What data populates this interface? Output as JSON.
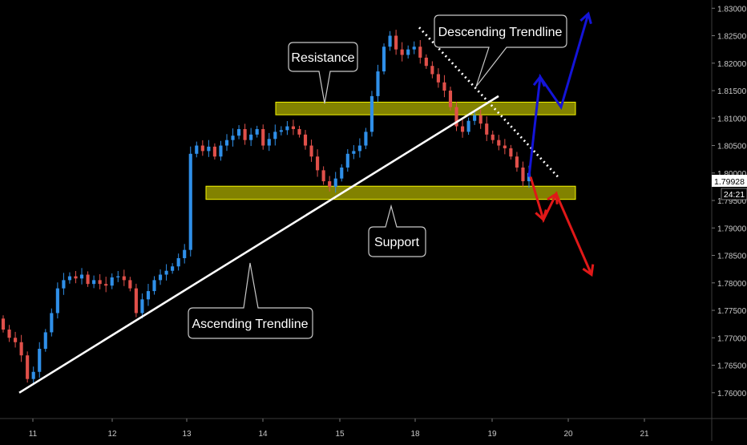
{
  "chart_data": {
    "type": "candlestick",
    "x_ticks": [
      "11",
      "12",
      "13",
      "14",
      "15",
      "18",
      "19",
      "20",
      "21"
    ],
    "y_ticks": [
      "1.83000",
      "1.82500",
      "1.82000",
      "1.81500",
      "1.81000",
      "1.80500",
      "1.80000",
      "1.79500",
      "1.79000",
      "1.78500",
      "1.78000",
      "1.77500",
      "1.77000",
      "1.76500",
      "1.76000"
    ],
    "ylim": [
      1.7553,
      1.8315
    ],
    "current_price": "1.79928",
    "countdown": "24:21",
    "annotations": {
      "resistance": "Resistance",
      "support": "Support",
      "descending": "Descending Trendline",
      "ascending": "Ascending Trendline"
    },
    "zones": {
      "resistance": [
        1.8106,
        1.8129
      ],
      "support": [
        1.7952,
        1.7976
      ]
    },
    "ascending_trendline": {
      "from": [
        "11",
        1.76
      ],
      "to": [
        "19",
        1.814
      ]
    },
    "descending_trendline": {
      "from": [
        "18",
        1.8265
      ],
      "to": [
        "20",
        1.799
      ]
    },
    "scenarios": {
      "bullish": [
        1.7993,
        1.8175,
        1.812,
        1.829
      ],
      "bearish": [
        1.7993,
        1.7915,
        1.7962,
        1.7815
      ]
    },
    "closes": [
      1.7715,
      1.77,
      1.7692,
      1.7668,
      1.7625,
      1.7638,
      1.768,
      1.771,
      1.7745,
      1.779,
      1.7805,
      1.7812,
      1.7808,
      1.7815,
      1.7798,
      1.7805,
      1.7798,
      1.7795,
      1.781,
      1.7812,
      1.7805,
      1.779,
      1.7745,
      1.777,
      1.7785,
      1.7805,
      1.7815,
      1.7822,
      1.783,
      1.7845,
      1.786,
      1.8035,
      1.805,
      1.804,
      1.8048,
      1.803,
      1.805,
      1.806,
      1.8068,
      1.808,
      1.806,
      1.807,
      1.808,
      1.805,
      1.8062,
      1.8075,
      1.8078,
      1.8085,
      1.808,
      1.807,
      1.805,
      1.803,
      1.8005,
      1.7985,
      1.7975,
      1.799,
      1.801,
      1.8035,
      1.804,
      1.805,
      1.8075,
      1.814,
      1.8185,
      1.823,
      1.825,
      1.8225,
      1.8215,
      1.8225,
      1.823,
      1.821,
      1.8195,
      1.818,
      1.8165,
      1.815,
      1.812,
      1.8085,
      1.8075,
      1.8095,
      1.8105,
      1.809,
      1.807,
      1.806,
      1.805,
      1.8045,
      1.803,
      1.801,
      1.7985,
      1.8
    ]
  }
}
